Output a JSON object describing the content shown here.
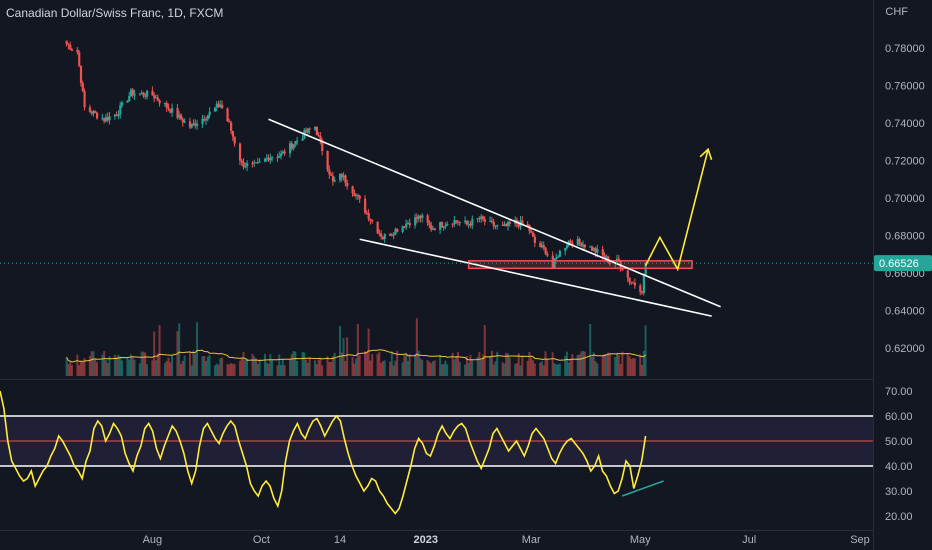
{
  "header": {
    "title": "Canadian Dollar/Swiss Franc, 1D, FXCM",
    "currency": "CHF"
  },
  "colors": {
    "bull": "#26a69a",
    "bear": "#ef5350",
    "rsi": "#ffeb3b",
    "annotation": "#ffeb3b",
    "zone": "#ef5350",
    "lines": "#ffffff",
    "background": "#131722"
  },
  "chart_data": [
    {
      "type": "candlestick",
      "title": "Canadian Dollar/Swiss Franc, 1D, FXCM",
      "ylabel": "CHF",
      "ylim": [
        0.608,
        0.795
      ],
      "y_ticks": [
        "0.78000",
        "0.76000",
        "0.74000",
        "0.72000",
        "0.70000",
        "0.68000",
        "0.66000",
        "0.64000",
        "0.62000"
      ],
      "x_ticks": [
        "Aug",
        "Oct",
        "14",
        "2023",
        "Mar",
        "May",
        "Jul",
        "Sep"
      ],
      "last_price": "0.66526",
      "close_path": [
        [
          "2022-06-14",
          0.782
        ],
        [
          "2022-06-20",
          0.778
        ],
        [
          "2022-06-24",
          0.748
        ],
        [
          "2022-07-05",
          0.742
        ],
        [
          "2022-07-12",
          0.745
        ],
        [
          "2022-07-20",
          0.756
        ],
        [
          "2022-08-01",
          0.755
        ],
        [
          "2022-08-10",
          0.748
        ],
        [
          "2022-08-22",
          0.738
        ],
        [
          "2022-08-30",
          0.743
        ],
        [
          "2022-09-08",
          0.75
        ],
        [
          "2022-09-13",
          0.739
        ],
        [
          "2022-09-20",
          0.718
        ],
        [
          "2022-09-28",
          0.717
        ],
        [
          "2022-10-05",
          0.722
        ],
        [
          "2022-10-12",
          0.723
        ],
        [
          "2022-10-20",
          0.73
        ],
        [
          "2022-10-26",
          0.735
        ],
        [
          "2022-10-31",
          0.738
        ],
        [
          "2022-11-04",
          0.726
        ],
        [
          "2022-11-10",
          0.708
        ],
        [
          "2022-11-15",
          0.712
        ],
        [
          "2022-11-22",
          0.703
        ],
        [
          "2022-11-29",
          0.692
        ],
        [
          "2022-12-05",
          0.683
        ],
        [
          "2022-12-08",
          0.679
        ],
        [
          "2022-12-15",
          0.683
        ],
        [
          "2022-12-22",
          0.687
        ],
        [
          "2022-12-29",
          0.69
        ],
        [
          "2023-01-04",
          0.684
        ],
        [
          "2023-01-10",
          0.686
        ],
        [
          "2023-01-16",
          0.688
        ],
        [
          "2023-01-24",
          0.686
        ],
        [
          "2023-01-31",
          0.689
        ],
        [
          "2023-02-06",
          0.686
        ],
        [
          "2023-02-13",
          0.684
        ],
        [
          "2023-02-20",
          0.687
        ],
        [
          "2023-02-27",
          0.685
        ],
        [
          "2023-03-03",
          0.676
        ],
        [
          "2023-03-09",
          0.672
        ],
        [
          "2023-03-13",
          0.663
        ],
        [
          "2023-03-16",
          0.67
        ],
        [
          "2023-03-22",
          0.677
        ],
        [
          "2023-03-29",
          0.676
        ],
        [
          "2023-04-04",
          0.673
        ],
        [
          "2023-04-10",
          0.669
        ],
        [
          "2023-04-14",
          0.666
        ],
        [
          "2023-04-19",
          0.666
        ],
        [
          "2023-04-25",
          0.656
        ],
        [
          "2023-04-28",
          0.654
        ],
        [
          "2023-05-02",
          0.651
        ],
        [
          "2023-05-04",
          0.665
        ]
      ],
      "volume_series": {
        "name": "Volume",
        "ma_label": "Volume MA"
      },
      "annotations": {
        "resistance_line": [
          [
            "2022-10-05",
            0.742
          ],
          [
            "2023-06-15",
            0.642
          ]
        ],
        "support_line": [
          [
            "2022-11-25",
            0.678
          ],
          [
            "2023-06-10",
            0.637
          ]
        ],
        "zone": {
          "x": [
            "2023-01-25",
            "2023-05-30"
          ],
          "y": [
            0.6625,
            0.6665
          ]
        },
        "projection": [
          [
            "2023-05-04",
            0.664
          ],
          [
            "2023-05-12",
            0.679
          ],
          [
            "2023-05-22",
            0.662
          ],
          [
            "2023-06-08",
            0.726
          ]
        ]
      }
    },
    {
      "type": "line",
      "title": "",
      "series": [
        {
          "values": [
            70,
            63,
            50,
            42,
            39,
            36,
            34,
            35,
            38,
            32,
            35,
            38,
            40,
            44,
            47,
            52,
            50,
            47,
            44,
            40,
            38,
            35,
            42,
            46,
            55,
            58,
            56,
            50,
            53,
            57,
            55,
            52,
            45,
            41,
            38,
            44,
            48,
            55,
            57,
            54,
            47,
            43,
            48,
            52,
            56,
            54,
            50,
            45,
            38,
            33,
            38,
            48,
            55,
            57,
            54,
            51,
            49,
            53,
            56,
            58,
            56,
            50,
            45,
            40,
            33,
            30,
            28,
            32,
            34,
            32,
            27,
            24,
            30,
            42,
            50,
            54,
            57,
            53,
            51,
            55,
            58,
            59,
            56,
            52,
            55,
            58,
            60,
            58,
            51,
            45,
            40,
            36,
            33,
            30,
            32,
            35,
            34,
            30,
            28,
            25,
            23,
            21,
            23,
            28,
            34,
            40,
            47,
            51,
            49,
            45,
            44,
            48,
            53,
            56,
            53,
            51,
            54,
            56,
            57,
            55,
            50,
            46,
            42,
            39,
            43,
            47,
            53,
            55,
            52,
            49,
            46,
            48,
            50,
            47,
            44,
            48,
            53,
            55,
            53,
            51,
            47,
            43,
            41,
            45,
            48,
            50,
            51,
            49,
            47,
            45,
            42,
            38,
            40,
            44,
            38,
            36,
            32,
            29,
            30,
            35,
            42,
            40,
            31,
            36,
            42,
            52
          ]
        }
      ],
      "ylim": [
        16,
        73
      ],
      "y_ticks": [
        "70.00",
        "60.00",
        "50.00",
        "40.00",
        "30.00",
        "20.00"
      ],
      "levels": [
        60,
        50,
        40
      ]
    }
  ]
}
